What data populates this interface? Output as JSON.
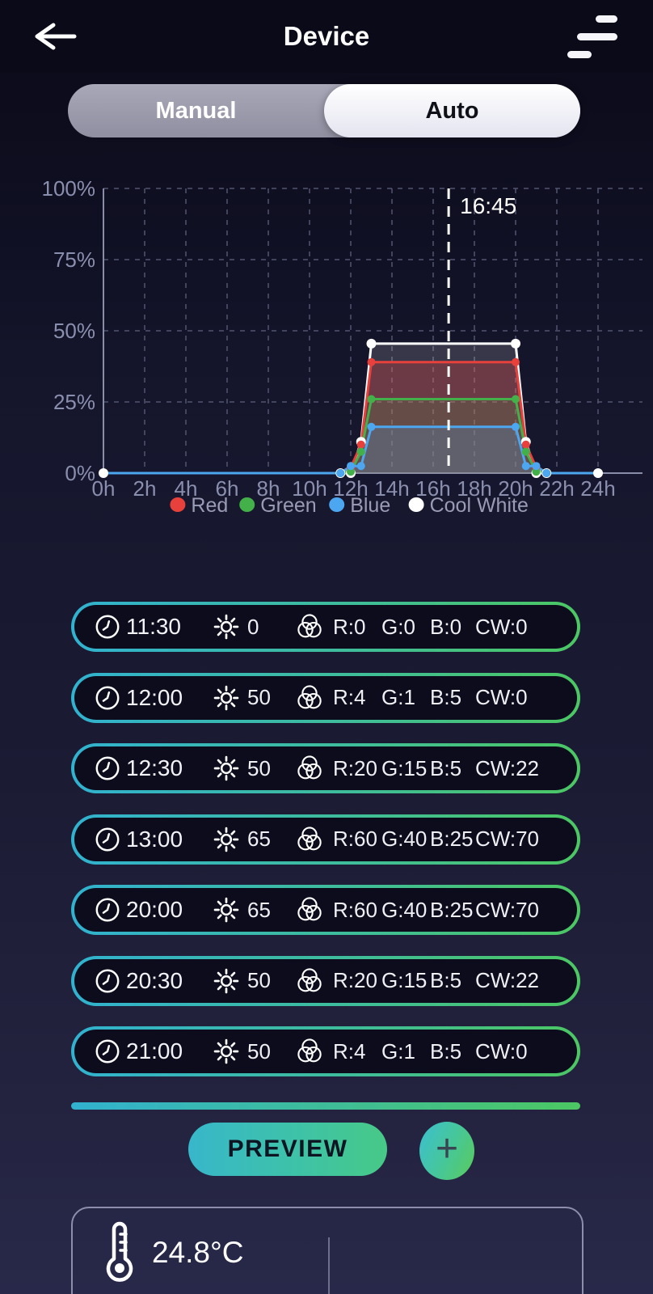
{
  "header": {
    "title": "Device"
  },
  "mode_toggle": {
    "options": [
      {
        "label": "Manual",
        "selected": false
      },
      {
        "label": "Auto",
        "selected": true
      }
    ]
  },
  "chart_data": {
    "type": "area",
    "title": "",
    "xlabel": "",
    "ylabel": "",
    "x_range": [
      0,
      24
    ],
    "ylim": [
      0,
      100
    ],
    "grid": true,
    "legend_position": "bottom",
    "x_ticks": [
      "0h",
      "2h",
      "4h",
      "6h",
      "8h",
      "10h",
      "12h",
      "14h",
      "16h",
      "18h",
      "20h",
      "22h",
      "24h"
    ],
    "y_ticks": [
      "0%",
      "25%",
      "50%",
      "75%",
      "100%"
    ],
    "current_time": {
      "label": "16:45",
      "hours": 16.75
    },
    "x_hours": [
      0,
      11.5,
      12,
      12.5,
      13,
      20,
      20.5,
      21,
      21.5,
      24
    ],
    "series": [
      {
        "name": "Red",
        "color": "#e8413c",
        "fill_opacity": 0.3,
        "values": [
          0,
          0,
          2,
          10,
          39,
          39,
          10,
          2,
          0,
          0
        ]
      },
      {
        "name": "Green",
        "color": "#43b04a",
        "fill_opacity": 0.16,
        "values": [
          0,
          0,
          0.5,
          7.5,
          26,
          26,
          7.5,
          0.5,
          0,
          0
        ]
      },
      {
        "name": "Blue",
        "color": "#4da6f0",
        "fill_opacity": 0.22,
        "values": [
          0,
          0,
          2.5,
          2.5,
          16.25,
          16.25,
          2.5,
          2.5,
          0,
          0
        ]
      },
      {
        "name": "Cool White",
        "color": "#ffffff",
        "fill_opacity": 0.15,
        "values": [
          0,
          0,
          0,
          11,
          45.5,
          45.5,
          11,
          0,
          0,
          0
        ]
      }
    ]
  },
  "schedule": {
    "rows": [
      {
        "time": "11:30",
        "brightness": "0",
        "red": "R:0",
        "green": "G:0",
        "blue": "B:0",
        "cool_white": "CW:0"
      },
      {
        "time": "12:00",
        "brightness": "50",
        "red": "R:4",
        "green": "G:1",
        "blue": "B:5",
        "cool_white": "CW:0"
      },
      {
        "time": "12:30",
        "brightness": "50",
        "red": "R:20",
        "green": "G:15",
        "blue": "B:5",
        "cool_white": "CW:22"
      },
      {
        "time": "13:00",
        "brightness": "65",
        "red": "R:60",
        "green": "G:40",
        "blue": "B:25",
        "cool_white": "CW:70"
      },
      {
        "time": "20:00",
        "brightness": "65",
        "red": "R:60",
        "green": "G:40",
        "blue": "B:25",
        "cool_white": "CW:70"
      },
      {
        "time": "20:30",
        "brightness": "50",
        "red": "R:20",
        "green": "G:15",
        "blue": "B:5",
        "cool_white": "CW:22"
      },
      {
        "time": "21:00",
        "brightness": "50",
        "red": "R:4",
        "green": "G:1",
        "blue": "B:5",
        "cool_white": "CW:0"
      }
    ]
  },
  "actions": {
    "preview_label": "PREVIEW",
    "add_label": "+"
  },
  "status": {
    "temperature": "24.8°C"
  },
  "colors": {
    "row_border_start": "#31b2cf",
    "row_border_end": "#4cc763",
    "button_gradient_start": "#37b7ca",
    "button_gradient_end": "#47c987"
  }
}
